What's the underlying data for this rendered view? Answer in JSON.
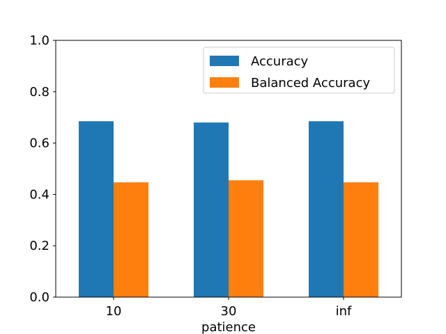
{
  "chart_data": {
    "type": "bar",
    "title": "",
    "xlabel": "patience",
    "ylabel": "",
    "categories": [
      "10",
      "30",
      "inf"
    ],
    "series": [
      {
        "name": "Accuracy",
        "color": "#1f77b4",
        "values": [
          0.685,
          0.68,
          0.685
        ]
      },
      {
        "name": "Balanced Accuracy",
        "color": "#ff7f0e",
        "values": [
          0.447,
          0.455,
          0.447
        ]
      }
    ],
    "ylim": [
      0.0,
      1.0
    ],
    "yticks": [
      "0.0",
      "0.2",
      "0.4",
      "0.6",
      "0.8",
      "1.0"
    ],
    "grid": false,
    "legend_position": "top-right"
  }
}
